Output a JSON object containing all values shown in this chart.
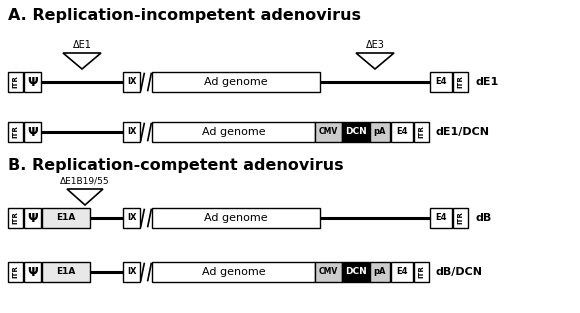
{
  "title_A": "A. Replication-incompetent adenovirus",
  "title_B": "B. Replication-competent adenovirus",
  "label_dE1": "dE1",
  "label_dE1_DCN": "dE1/DCN",
  "label_dB": "dB",
  "label_dB_DCN": "dB/DCN",
  "bg_color": "#ffffff"
}
